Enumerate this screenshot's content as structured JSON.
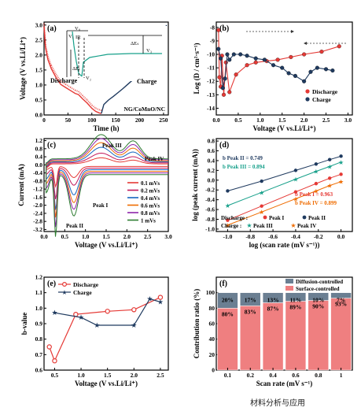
{
  "panels": {
    "a": {
      "letter": "(a)",
      "xlabel": "Time (h)",
      "ylabel": "Voltage (V vs.Li/Li⁺)",
      "xticks": [
        0,
        50,
        100,
        150,
        200,
        250
      ],
      "yticks": [
        "0.0",
        "0.5",
        "1.0",
        "1.5",
        "2.0",
        "2.5",
        "3.0"
      ],
      "label_discharge": "Discharge",
      "label_charge": "Charge",
      "label_sample": "NG/CoMnO/NC",
      "inset_labels": [
        "V₀",
        "V₁",
        "IR",
        "ΔEₜ",
        "V₂",
        "ΔEₛ",
        "V₃"
      ]
    },
    "b": {
      "letter": "(b)",
      "xlabel": "Voltage (V vs.Li/Li⁺)",
      "ylabel": "Log (D / cm²·s⁻¹)",
      "xticks": [
        "0.0",
        "0.5",
        "1.0",
        "1.5",
        "2.0",
        "2.5",
        "3.0"
      ],
      "yticks": [
        "-8",
        "-9",
        "-10",
        "-11",
        "-12",
        "-13",
        "-14"
      ],
      "legend": [
        "Discharge",
        "Charge"
      ]
    },
    "c": {
      "letter": "(c)",
      "xlabel": "Voltage (V vs.Li/Li⁺)",
      "ylabel": "Current (mA)",
      "xticks": [
        "0.0",
        "0.5",
        "1.0",
        "1.5",
        "2.0",
        "2.5",
        "3.0"
      ],
      "yticks": [
        "1.2",
        "0.8",
        "0.4",
        "0.0",
        "-0.4",
        "-0.8",
        "-1.2",
        "-1.6",
        "-2.0",
        "-2.4",
        "-2.8",
        "-3.2"
      ],
      "legend": [
        "0.1 mVs",
        "0.2 mVs",
        "0.4 mVs",
        "0.6 mVs",
        "0.8 mVs",
        "1 mVs"
      ],
      "peaks": [
        "Peak III",
        "Peak IV",
        "Peak I",
        "Peak II"
      ]
    },
    "d": {
      "letter": "(d)",
      "xlabel": "log (scan rate (mV s⁻¹))",
      "ylabel": "log (peak current (mA))",
      "xticks": [
        "-1.0",
        "-0.8",
        "-0.6",
        "-0.4",
        "-0.2",
        "0.0"
      ],
      "yticks": [
        "0.8",
        "0.6",
        "0.4",
        "0.2",
        "0.0",
        "-0.2",
        "-0.4",
        "-0.6",
        "-0.8",
        "-1.0"
      ],
      "blabels": [
        "b Peak II = 0.749",
        "b Peak III = 0.894",
        "b Peak I = 0.963",
        "b Peak IV = 0.899"
      ],
      "legend_title": "Discharge :",
      "legend_charge": "Charge :",
      "legend": [
        "Peak I",
        "Peak II",
        "Peak III",
        "Peak IV"
      ]
    },
    "e": {
      "letter": "(e)",
      "xlabel": "Voltage (V vs.Li/Li⁺)",
      "ylabel": "b-value",
      "xticks": [
        "0.5",
        "1.0",
        "1.5",
        "2.0",
        "2.5"
      ],
      "yticks": [
        "0.6",
        "0.7",
        "0.8",
        "0.9",
        "1.0",
        "1.1",
        "1.2"
      ],
      "legend": [
        "Discharge",
        "Charge"
      ]
    },
    "f": {
      "letter": "(f)",
      "xlabel": "Scan rate (mV s⁻¹)",
      "ylabel": "Contribution ratio (%)",
      "xticks": [
        "0.1",
        "0.2",
        "0.4",
        "0.6",
        "0.8",
        "1"
      ],
      "yticks": [
        "0",
        "20",
        "40",
        "60",
        "80",
        "100"
      ],
      "legend": [
        "Diffusion-controlled",
        "Surface-controlled"
      ]
    }
  },
  "watermark": "材料分析与应用",
  "colors": {
    "red": "#e53935",
    "navy": "#1f3a5f",
    "teal": "#17a08a",
    "frame": "#000000"
  },
  "chart_data": [
    {
      "type": "line",
      "panel": "a",
      "xlim": [
        0,
        260
      ],
      "ylim": [
        0.0,
        3.1
      ],
      "series": [
        {
          "name": "Discharge",
          "x": [
            0,
            3,
            8,
            15,
            25,
            35,
            45,
            55,
            65,
            72,
            80,
            90,
            100,
            108,
            115,
            120
          ],
          "y": [
            2.95,
            2.25,
            1.85,
            1.55,
            1.25,
            1.02,
            0.92,
            0.82,
            0.72,
            0.68,
            0.55,
            0.4,
            0.22,
            0.12,
            0.07,
            0.05
          ]
        },
        {
          "name": "Charge",
          "x": [
            120,
            125,
            135,
            145,
            155,
            165,
            175,
            185,
            195,
            205,
            215,
            225,
            235,
            245,
            252,
            256
          ],
          "y": [
            0.05,
            0.35,
            0.5,
            0.62,
            0.75,
            0.88,
            1.02,
            1.16,
            1.3,
            1.42,
            1.55,
            1.7,
            1.95,
            2.3,
            2.7,
            3.0
          ]
        }
      ]
    },
    {
      "type": "scatter",
      "panel": "b",
      "xlim": [
        0,
        3.1
      ],
      "ylim": [
        -14.5,
        -7.6
      ],
      "series": [
        {
          "name": "Discharge",
          "x": [
            0.05,
            0.07,
            0.1,
            0.13,
            0.17,
            0.22,
            0.3,
            0.45,
            0.7,
            0.9,
            1.15,
            1.4,
            1.7,
            2.0,
            2.4,
            2.8
          ],
          "y": [
            -8.2,
            -11.7,
            -12.4,
            -10.1,
            -13.0,
            -10.6,
            -12.8,
            -11.5,
            -10.8,
            -10.6,
            -10.5,
            -10.4,
            -10.2,
            -10.0,
            -9.8,
            -9.4
          ]
        },
        {
          "name": "Charge",
          "x": [
            0.05,
            0.1,
            0.15,
            0.2,
            0.25,
            0.3,
            0.4,
            0.55,
            0.7,
            0.9,
            1.1,
            1.3,
            1.5,
            1.65,
            1.8,
            2.0,
            2.15,
            2.3,
            2.5,
            2.65
          ],
          "y": [
            -9.6,
            -10.3,
            -12.5,
            -11.8,
            -10.0,
            -10.4,
            -10.0,
            -10.0,
            -10.1,
            -10.3,
            -10.4,
            -10.8,
            -11.0,
            -11.4,
            -11.6,
            -12.0,
            -11.3,
            -11.0,
            -11.1,
            -11.2
          ]
        }
      ]
    },
    {
      "type": "line",
      "panel": "c",
      "xlim": [
        0,
        3.0
      ],
      "ylim": [
        -3.3,
        1.3
      ],
      "scan_rates": [
        0.1,
        0.2,
        0.4,
        0.6,
        0.8,
        1.0
      ],
      "peak_currents": {
        "Peak I": [
          -0.55,
          -0.85,
          -1.25,
          -1.55,
          -1.8,
          -2.05
        ],
        "Peak II": [
          -1.0,
          -1.55,
          -2.0,
          -2.3,
          -2.7,
          -3.1
        ],
        "Peak III": [
          0.3,
          0.48,
          0.72,
          0.9,
          1.05,
          1.2
        ],
        "Peak IV": [
          0.18,
          0.3,
          0.48,
          0.62,
          0.75,
          0.88
        ]
      },
      "peak_voltages": {
        "Peak I": 0.72,
        "Peak II": 0.28,
        "Peak III": 1.38,
        "Peak IV": 2.15
      }
    },
    {
      "type": "scatter",
      "panel": "d",
      "x": [
        -1.0,
        -0.7,
        -0.4,
        -0.22,
        -0.1,
        0.0
      ],
      "xlim": [
        -1.1,
        0.1
      ],
      "ylim": [
        -1.05,
        0.85
      ],
      "series": [
        {
          "name": "Peak II",
          "y": [
            -0.22,
            -0.02,
            0.2,
            0.33,
            0.42,
            0.49
          ]
        },
        {
          "name": "Peak III",
          "y": [
            -0.52,
            -0.25,
            0.02,
            0.18,
            0.28,
            0.37
          ]
        },
        {
          "name": "Peak I",
          "y": [
            -0.82,
            -0.53,
            -0.24,
            -0.07,
            0.04,
            0.12
          ]
        },
        {
          "name": "Peak IV",
          "y": [
            -0.92,
            -0.65,
            -0.38,
            -0.22,
            -0.11,
            -0.03
          ]
        }
      ]
    },
    {
      "type": "line",
      "panel": "e",
      "xlim": [
        0.3,
        2.65
      ],
      "ylim": [
        0.6,
        1.2
      ],
      "series": [
        {
          "name": "Discharge",
          "x": [
            0.4,
            0.5,
            0.9,
            1.5,
            2.0,
            2.5
          ],
          "y": [
            0.75,
            0.66,
            0.96,
            0.98,
            0.99,
            1.07
          ]
        },
        {
          "name": "Charge",
          "x": [
            0.5,
            1.0,
            1.3,
            2.0,
            2.3,
            2.5
          ],
          "y": [
            0.97,
            0.94,
            0.89,
            0.89,
            1.06,
            1.04
          ]
        }
      ]
    },
    {
      "type": "bar",
      "panel": "f",
      "categories": [
        "0.1",
        "0.2",
        "0.4",
        "0.6",
        "0.8",
        "1"
      ],
      "ylim": [
        0,
        100
      ],
      "series": [
        {
          "name": "Surface-controlled",
          "values": [
            80,
            83,
            87,
            89,
            90,
            93
          ],
          "labels": [
            "80%",
            "83%",
            "87%",
            "89%",
            "90%",
            "93%"
          ]
        },
        {
          "name": "Diffusion-controlled",
          "values": [
            20,
            17,
            13,
            11,
            10,
            7
          ],
          "labels": [
            "20%",
            "17%",
            "13%",
            "11%",
            "10%",
            "7%"
          ]
        }
      ]
    }
  ]
}
